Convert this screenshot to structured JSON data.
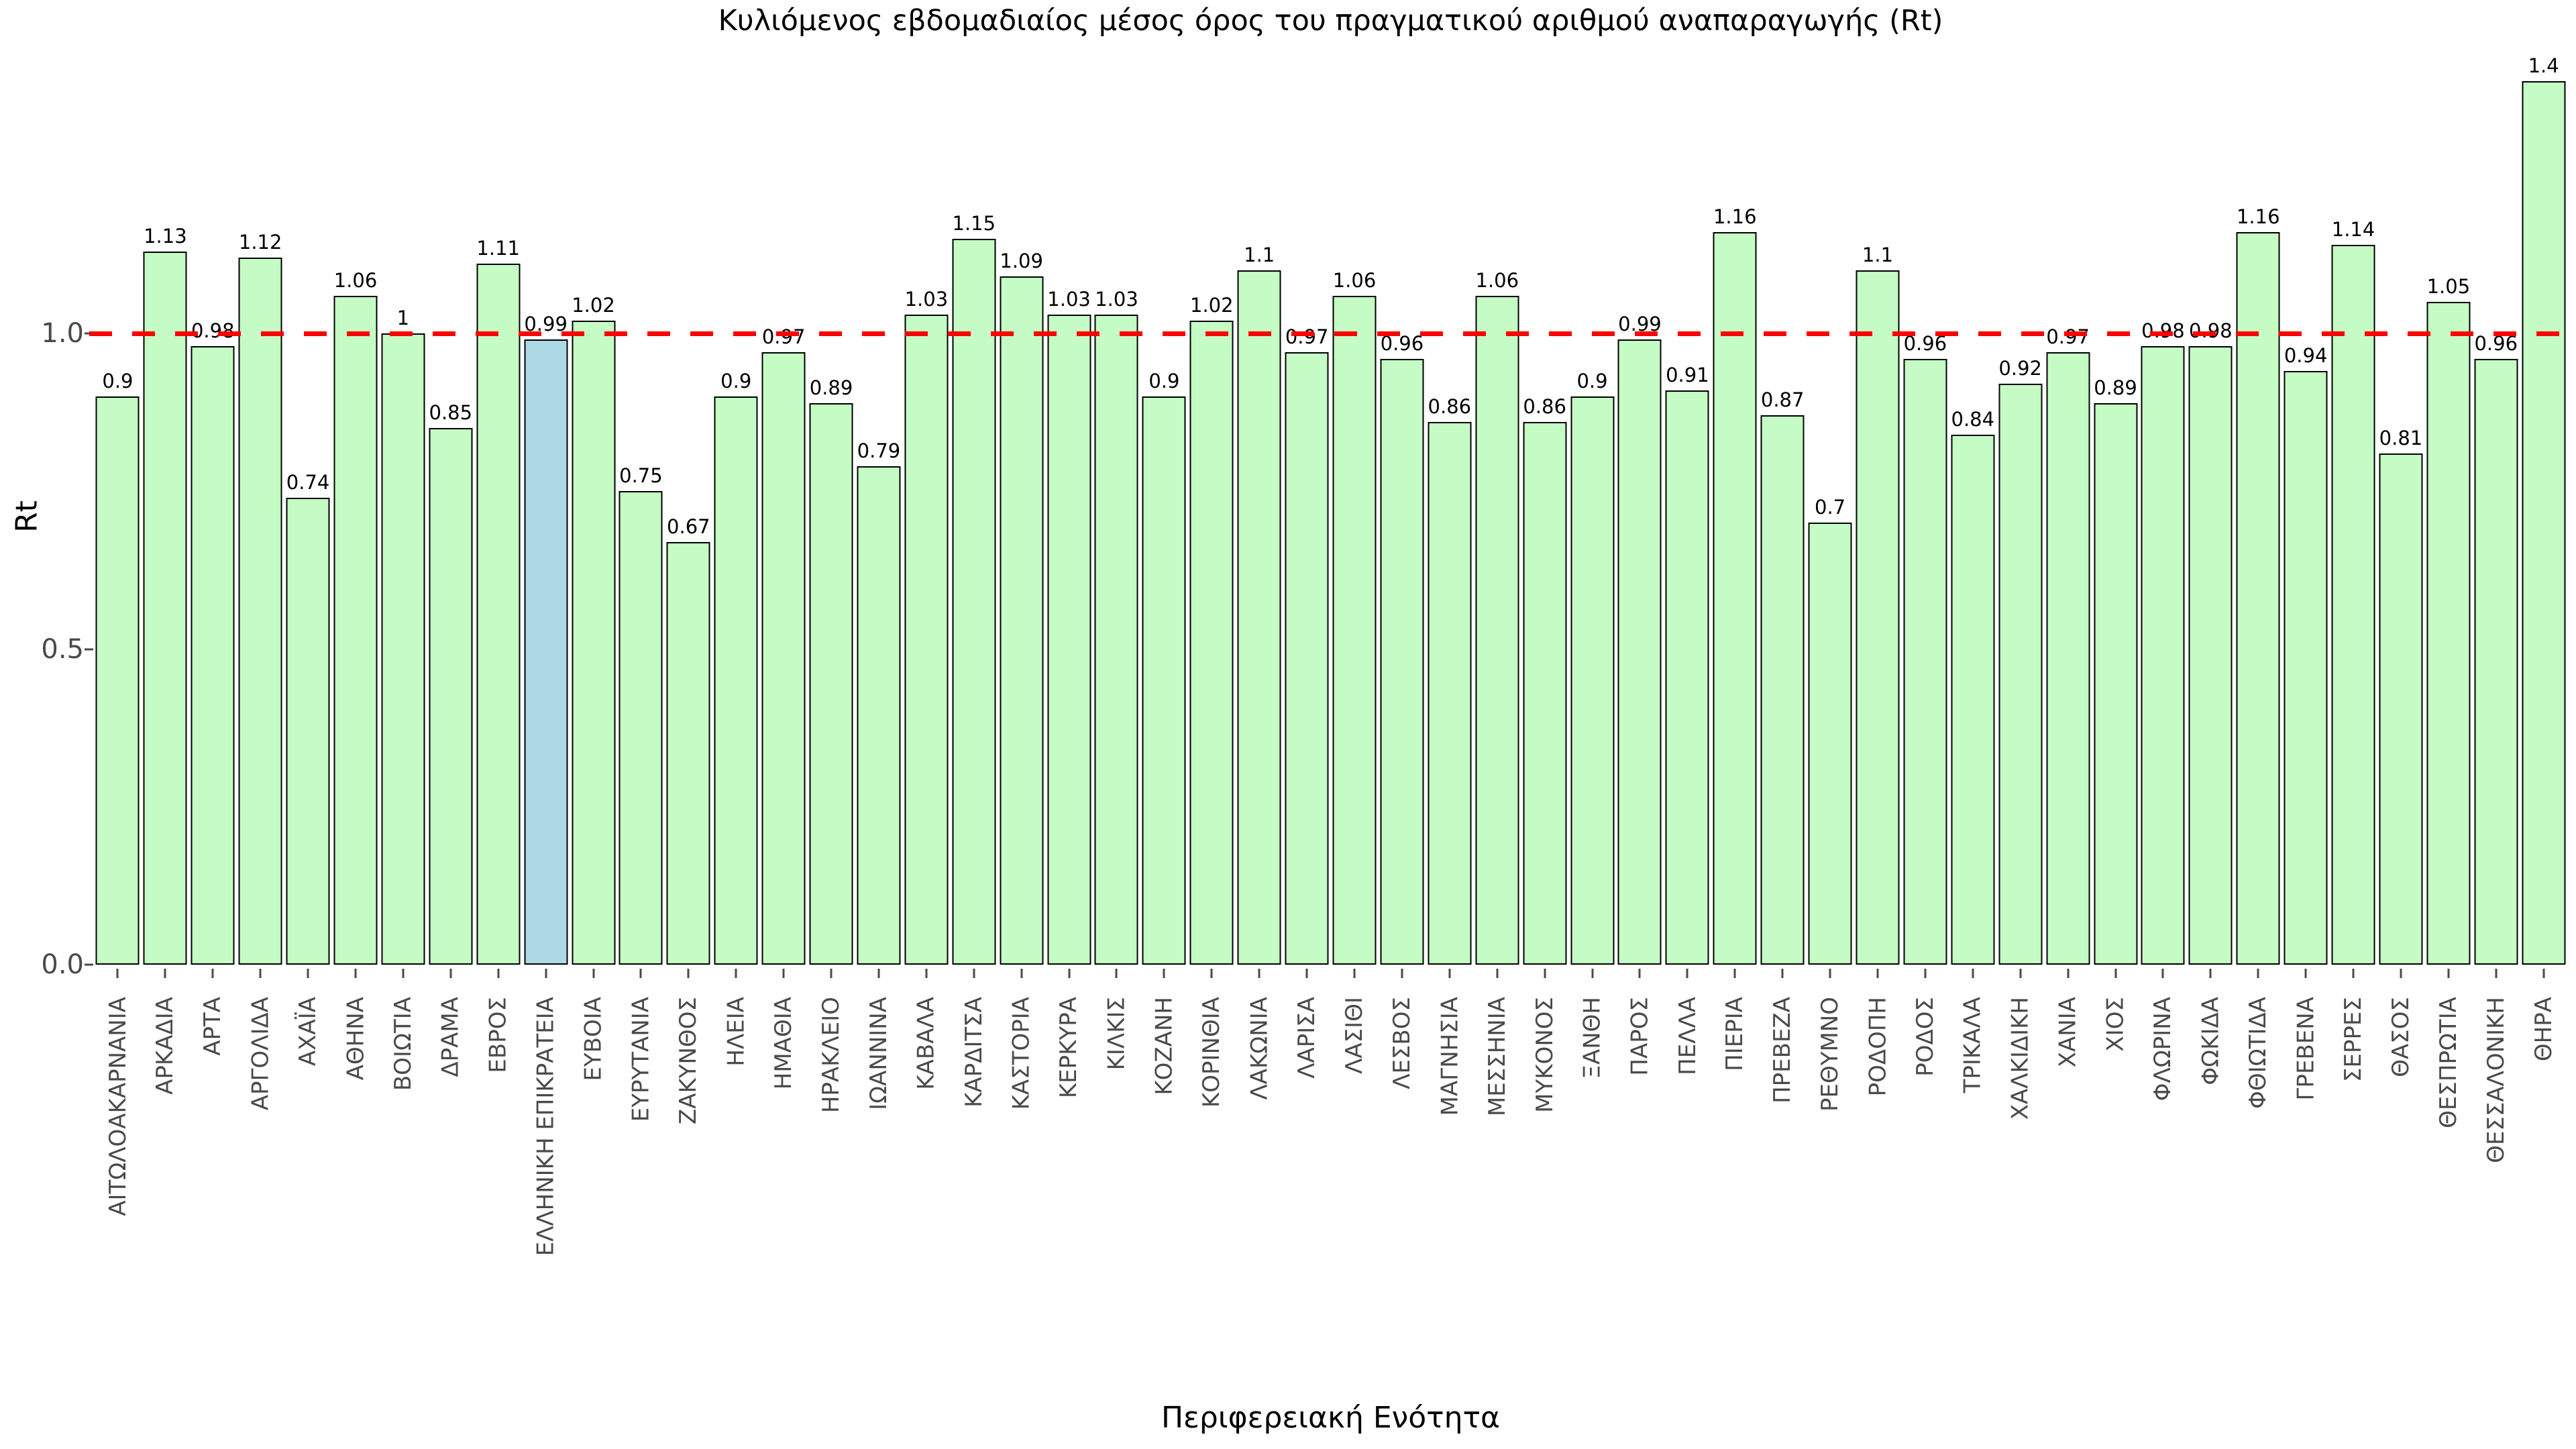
{
  "chart_data": {
    "type": "bar",
    "title": "Κυλιόμενος εβδομαδιαίος μέσος όρος του πραγματικού αριθμού αναπαραγωγής (Rt)",
    "xlabel": "Περιφερειακή Ενότητα",
    "ylabel": "Rt",
    "ylim": [
      0,
      1.45
    ],
    "grid": false,
    "legend_position": "none",
    "yticks": [
      {
        "value": 0.0,
        "label": "0.0"
      },
      {
        "value": 0.5,
        "label": "0.5"
      },
      {
        "value": 1.0,
        "label": "1.0"
      }
    ],
    "reference_line": {
      "value": 1.0,
      "color": "#ff0000",
      "style": "dashed"
    },
    "bar_color": "#c5fbc5",
    "bar_border_color": "#000000",
    "highlight_color": "#add8e6",
    "highlight_category": "ΕΛΛΗΝΙΚΗ ΕΠΙΚΡΑΤΕΙΑ",
    "highlight_index": 9,
    "categories": [
      "ΑΙΤΩΛΟΑΚΑΡΝΑΝΙΑ",
      "ΑΡΚΑΔΙΑ",
      "ΑΡΤΑ",
      "ΑΡΓΟΛΙΔΑ",
      "ΑΧΑΪΑ",
      "ΑΘΗΝΑ",
      "ΒΟΙΩΤΙΑ",
      "ΔΡΑΜΑ",
      "ΕΒΡΟΣ",
      "ΕΛΛΗΝΙΚΗ ΕΠΙΚΡΑΤΕΙΑ",
      "ΕΥΒΟΙΑ",
      "ΕΥΡΥΤΑΝΙΑ",
      "ΖΑΚΥΝΘΟΣ",
      "ΗΛΕΙΑ",
      "ΗΜΑΘΙΑ",
      "ΗΡΑΚΛΕΙΟ",
      "ΙΩΑΝΝΙΝΑ",
      "ΚΑΒΑΛΑ",
      "ΚΑΡΔΙΤΣΑ",
      "ΚΑΣΤΟΡΙΑ",
      "ΚΕΡΚΥΡΑ",
      "ΚΙΛΚΙΣ",
      "ΚΟΖΑΝΗ",
      "ΚΟΡΙΝΘΙΑ",
      "ΛΑΚΩΝΙΑ",
      "ΛΑΡΙΣΑ",
      "ΛΑΣΙΘΙ",
      "ΛΕΣΒΟΣ",
      "ΜΑΓΝΗΣΙΑ",
      "ΜΕΣΣΗΝΙΑ",
      "ΜΥΚΟΝΟΣ",
      "ΞΑΝΘΗ",
      "ΠΑΡΟΣ",
      "ΠΕΛΛΑ",
      "ΠΙΕΡΙΑ",
      "ΠΡΕΒΕΖΑ",
      "ΡΕΘΥΜΝΟ",
      "ΡΟΔΟΠΗ",
      "ΡΟΔΟΣ",
      "ΤΡΙΚΑΛΑ",
      "ΧΑΛΚΙΔΙΚΗ",
      "ΧΑΝΙΑ",
      "ΧΙΟΣ",
      "ΦΛΩΡΙΝΑ",
      "ΦΩΚΙΔΑ",
      "ΦΘΙΩΤΙΔΑ",
      "ΓΡΕΒΕΝΑ",
      "ΣΕΡΡΕΣ",
      "ΘΑΣΟΣ",
      "ΘΕΣΠΡΩΤΙΑ",
      "ΘΕΣΣΑΛΟΝΙΚΗ",
      "ΘΗΡΑ"
    ],
    "values": [
      0.9,
      1.13,
      0.98,
      1.12,
      0.74,
      1.06,
      1,
      0.85,
      1.11,
      0.99,
      1.02,
      0.75,
      0.67,
      0.9,
      0.97,
      0.89,
      0.79,
      1.03,
      1.15,
      1.09,
      1.03,
      1.03,
      0.9,
      1.02,
      1.1,
      0.97,
      1.06,
      0.96,
      0.86,
      1.06,
      0.86,
      0.9,
      0.99,
      0.91,
      1.16,
      0.87,
      0.7,
      1.1,
      0.96,
      0.84,
      0.92,
      0.97,
      0.89,
      0.98,
      0.98,
      1.16,
      0.94,
      1.14,
      0.81,
      1.05,
      0.96,
      1.4
    ],
    "value_labels": [
      "0.9",
      "1.13",
      "0.98",
      "1.12",
      "0.74",
      "1.06",
      "1",
      "0.85",
      "1.11",
      "0.99",
      "1.02",
      "0.75",
      "0.67",
      "0.9",
      "0.97",
      "0.89",
      "0.79",
      "1.03",
      "1.15",
      "1.09",
      "1.03",
      "1.03",
      "0.9",
      "1.02",
      "1.1",
      "0.97",
      "1.06",
      "0.96",
      "0.86",
      "1.06",
      "0.86",
      "0.9",
      "0.99",
      "0.91",
      "1.16",
      "0.87",
      "0.7",
      "1.1",
      "0.96",
      "0.84",
      "0.92",
      "0.97",
      "0.89",
      "0.98",
      "0.98",
      "1.16",
      "0.94",
      "1.14",
      "0.81",
      "1.05",
      "0.96",
      "1.4"
    ]
  }
}
